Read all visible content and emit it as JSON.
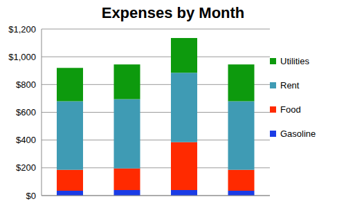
{
  "chart_data": {
    "type": "bar",
    "title": "Expenses by Month",
    "stacked": true,
    "grid": true,
    "legend": "right",
    "categories": [
      null,
      null,
      null,
      null
    ],
    "ylim": [
      0,
      1200
    ],
    "yticks": [
      {
        "value": 0,
        "label": "$0"
      },
      {
        "value": 200,
        "label": "$200"
      },
      {
        "value": 400,
        "label": "$400"
      },
      {
        "value": 600,
        "label": "$600"
      },
      {
        "value": 800,
        "label": "$800"
      },
      {
        "value": 1000,
        "label": "$1,000"
      },
      {
        "value": 1200,
        "label": "$1,200"
      }
    ],
    "series": [
      {
        "name": "Gasoline",
        "color": "#1a3ce6",
        "values": [
          35,
          40,
          40,
          35
        ]
      },
      {
        "name": "Food",
        "color": "#ff2a00",
        "values": [
          150,
          155,
          345,
          150
        ]
      },
      {
        "name": "Rent",
        "color": "#3f9bb4",
        "values": [
          495,
          500,
          500,
          495
        ]
      },
      {
        "name": "Utilities",
        "color": "#0d9a0d",
        "values": [
          240,
          250,
          250,
          265
        ]
      }
    ]
  }
}
